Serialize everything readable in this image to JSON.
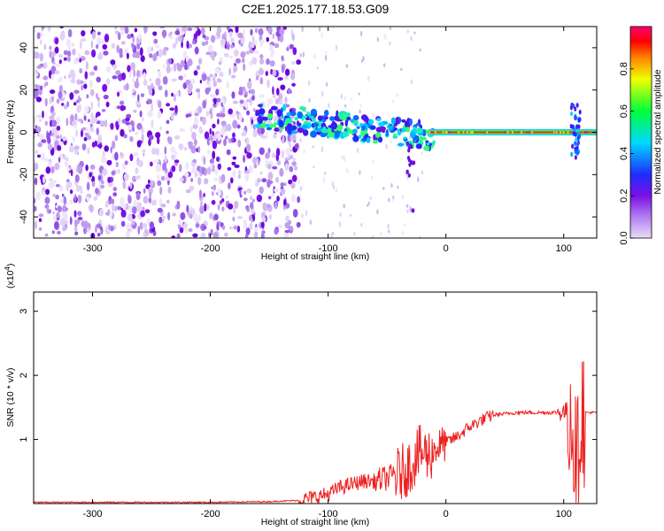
{
  "chart_data": [
    {
      "type": "heatmap",
      "title": "C2E1.2025.177.18.53.G09",
      "xlabel": "Height of straight line (km)",
      "ylabel": "Frequency (Hz)",
      "xlim": [
        -350,
        128
      ],
      "ylim": [
        -50,
        50
      ],
      "xticks": [
        -300,
        -200,
        -100,
        0,
        100
      ],
      "yticks": [
        -40,
        -20,
        0,
        20,
        40
      ],
      "colorbar": {
        "label": "Normalized spectral amplitude",
        "range": [
          0,
          1
        ],
        "ticks": [
          "0.0",
          "0.2",
          "0.4",
          "0.6",
          "0.8"
        ],
        "colors": [
          "#e9dcf7",
          "#7a10e6",
          "#1f2cff",
          "#00d8ff",
          "#00ff3a",
          "#f0ff00",
          "#ff8800",
          "#ff0000",
          "#ff0077"
        ]
      },
      "features": {
        "noise_region_x": [
          -350,
          -125
        ],
        "carrier_frequency": 0,
        "transition_region_x": [
          -160,
          -10
        ],
        "burst_x": 110
      }
    },
    {
      "type": "line",
      "xlabel": "Height of straight line (km)",
      "ylabel": "SNR (10 * v/v)",
      "multiplier_base": "(x10",
      "multiplier_exp": "4",
      "multiplier_close": ")",
      "xlim": [
        -350,
        128
      ],
      "ylim": [
        0,
        3.3
      ],
      "xticks": [
        -300,
        -200,
        -100,
        0,
        100
      ],
      "yticks": [
        1,
        2,
        3
      ],
      "line_color": "#ee2020",
      "x": [
        -350,
        -300,
        -250,
        -200,
        -150,
        -125,
        -110,
        -100,
        -90,
        -80,
        -70,
        -60,
        -50,
        -40,
        -30,
        -25,
        -20,
        -15,
        -10,
        0,
        10,
        20,
        30,
        40,
        50,
        60,
        70,
        80,
        90,
        100,
        104,
        106,
        108,
        110,
        112,
        114,
        116,
        120,
        128
      ],
      "y": [
        0.02,
        0.02,
        0.02,
        0.02,
        0.03,
        0.05,
        0.1,
        0.15,
        0.25,
        0.3,
        0.35,
        0.35,
        0.4,
        0.45,
        0.6,
        0.75,
        0.8,
        0.75,
        0.85,
        0.95,
        1.05,
        1.2,
        1.3,
        1.38,
        1.4,
        1.42,
        1.42,
        1.42,
        1.42,
        1.43,
        1.45,
        1.6,
        1.2,
        0.6,
        0.5,
        1.5,
        1.42,
        1.42,
        1.42
      ]
    }
  ]
}
